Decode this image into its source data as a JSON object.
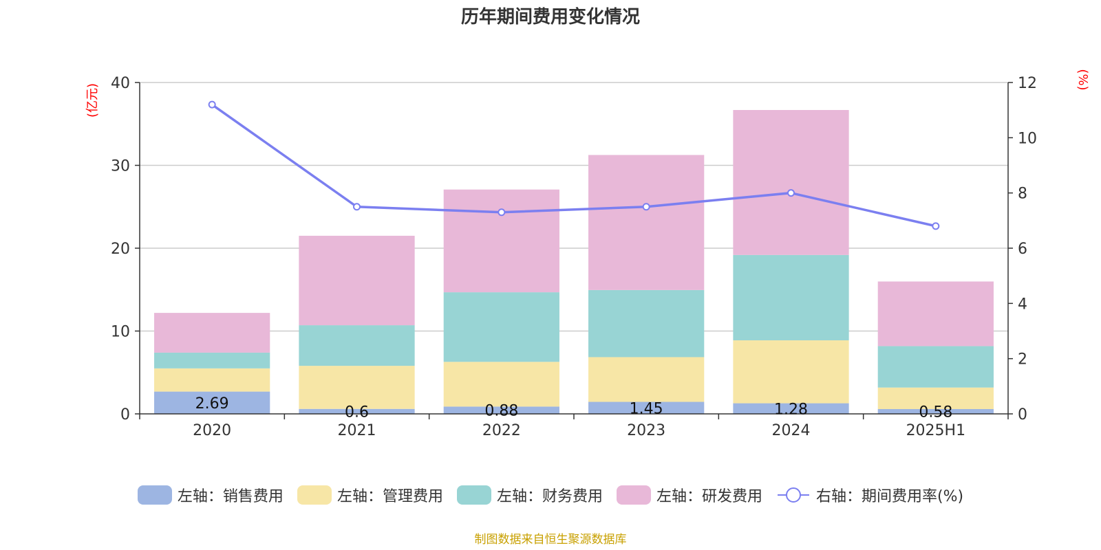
{
  "chart_data": {
    "type": "bar",
    "title": "历年期间费用变化情况",
    "categories": [
      "2020",
      "2021",
      "2022",
      "2023",
      "2024",
      "2025H1"
    ],
    "y_left": {
      "unit_label": "(亿元)",
      "ylim": [
        0,
        40
      ],
      "ticks": [
        0,
        10,
        20,
        30,
        40
      ]
    },
    "y_right": {
      "unit_label": "(%)",
      "ylim": [
        0,
        12
      ],
      "ticks": [
        0,
        2,
        4,
        6,
        8,
        10,
        12
      ]
    },
    "grid": true,
    "legend_position": "bottom",
    "series": [
      {
        "name": "左轴：销售费用",
        "type": "bar",
        "axis": "left",
        "color": "#9db5e2",
        "values": [
          2.69,
          0.6,
          0.88,
          1.45,
          1.28,
          0.58
        ],
        "data_labels": [
          "2.69",
          "0.6",
          "0.88",
          "1.45",
          "1.28",
          "0.58"
        ]
      },
      {
        "name": "左轴：管理费用",
        "type": "bar",
        "axis": "left",
        "color": "#f7e6a6",
        "values": [
          2.8,
          5.2,
          5.4,
          5.4,
          7.6,
          2.6
        ]
      },
      {
        "name": "左轴：财务费用",
        "type": "bar",
        "axis": "left",
        "color": "#98d4d4",
        "values": [
          1.9,
          4.9,
          8.4,
          8.1,
          10.3,
          5.0
        ]
      },
      {
        "name": "左轴：研发费用",
        "type": "bar",
        "axis": "left",
        "color": "#e8b8d8",
        "values": [
          4.8,
          10.8,
          12.4,
          16.3,
          17.5,
          7.8
        ]
      },
      {
        "name": "右轴：期间费用率(%)",
        "type": "line",
        "axis": "right",
        "color": "#7b7ff0",
        "values": [
          11.2,
          7.5,
          7.3,
          7.5,
          8.0,
          6.8
        ]
      }
    ]
  },
  "source_note": "制图数据来自恒生聚源数据库"
}
